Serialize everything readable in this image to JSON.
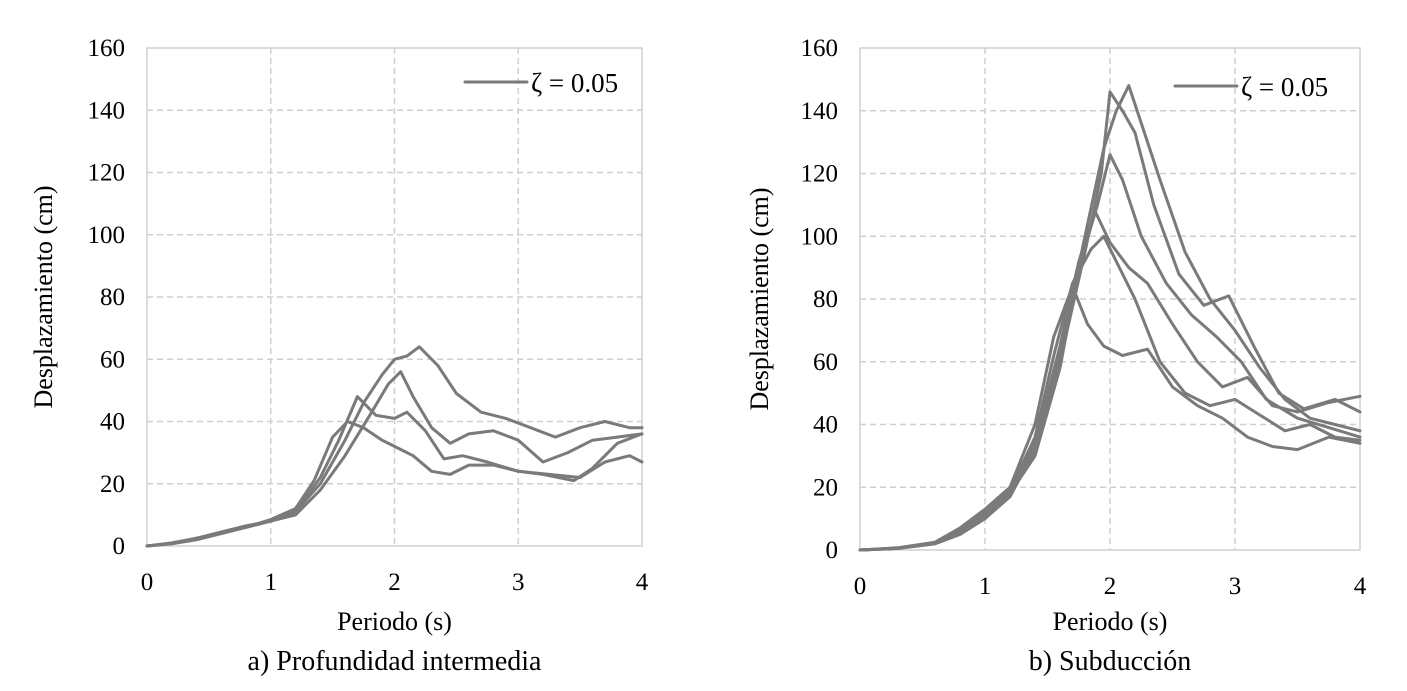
{
  "chart_data": [
    {
      "type": "line",
      "caption": "a) Profundidad intermedia",
      "xlabel": "Periodo (s)",
      "ylabel": "Desplazamiento (cm)",
      "xlim": [
        0,
        4
      ],
      "ylim": [
        0,
        160
      ],
      "x_ticks": [
        "0",
        "1",
        "2",
        "3",
        "4"
      ],
      "y_ticks": [
        "0",
        "20",
        "40",
        "60",
        "80",
        "100",
        "120",
        "140",
        "160"
      ],
      "grid": true,
      "legend": {
        "label": "ζ = 0.05",
        "position": "top-right"
      },
      "color": "#7a7a7a",
      "series": [
        {
          "x": [
            0,
            0.2,
            0.4,
            0.6,
            0.8,
            1.0,
            1.2,
            1.4,
            1.6,
            1.75,
            1.9,
            2.0,
            2.1,
            2.2,
            2.35,
            2.5,
            2.7,
            2.9,
            3.1,
            3.3,
            3.5,
            3.7,
            3.9,
            4.0
          ],
          "y": [
            0,
            0.8,
            2.5,
            4,
            6,
            8,
            11,
            20,
            34,
            46,
            55,
            60,
            61,
            64,
            58,
            49,
            43,
            41,
            38,
            35,
            38,
            40,
            38,
            38
          ]
        },
        {
          "x": [
            0,
            0.2,
            0.4,
            0.6,
            0.8,
            1.0,
            1.2,
            1.4,
            1.6,
            1.8,
            1.95,
            2.05,
            2.15,
            2.3,
            2.45,
            2.6,
            2.8,
            3.0,
            3.2,
            3.4,
            3.6,
            3.8,
            4.0
          ],
          "y": [
            0,
            1,
            2.5,
            4.5,
            6.5,
            8,
            10,
            18,
            29,
            42,
            52,
            56,
            48,
            38,
            33,
            36,
            37,
            34,
            27,
            30,
            34,
            35,
            36
          ]
        },
        {
          "x": [
            0,
            0.2,
            0.4,
            0.6,
            0.8,
            1.0,
            1.2,
            1.4,
            1.55,
            1.7,
            1.85,
            2.0,
            2.1,
            2.25,
            2.4,
            2.55,
            2.75,
            3.0,
            3.25,
            3.5,
            3.7,
            3.9,
            4.0
          ],
          "y": [
            0,
            0.7,
            2,
            4,
            6,
            8,
            11,
            22,
            34,
            48,
            42,
            41,
            43,
            37,
            28,
            29,
            27,
            24,
            23,
            22,
            27,
            29,
            27
          ]
        },
        {
          "x": [
            0,
            0.2,
            0.4,
            0.6,
            0.8,
            1.0,
            1.2,
            1.35,
            1.5,
            1.62,
            1.75,
            1.9,
            2.0,
            2.15,
            2.3,
            2.45,
            2.6,
            2.8,
            3.0,
            3.2,
            3.45,
            3.6,
            3.8,
            4.0
          ],
          "y": [
            0,
            0.9,
            2.4,
            4.2,
            6,
            8.5,
            12,
            21,
            35,
            40,
            38,
            34,
            32,
            29,
            24,
            23,
            26,
            26,
            24,
            23,
            21,
            25,
            33,
            36
          ]
        }
      ]
    },
    {
      "type": "line",
      "caption": "b) Subducción",
      "xlabel": "Periodo (s)",
      "ylabel": "Desplazamiento (cm)",
      "xlim": [
        0,
        4
      ],
      "ylim": [
        0,
        160
      ],
      "x_ticks": [
        "0",
        "1",
        "2",
        "3",
        "4"
      ],
      "y_ticks": [
        "0",
        "20",
        "40",
        "60",
        "80",
        "100",
        "120",
        "140",
        "160"
      ],
      "grid": true,
      "legend": {
        "label": "ζ = 0.05",
        "position": "top-right"
      },
      "color": "#7a7a7a",
      "series": [
        {
          "x": [
            0,
            0.3,
            0.6,
            0.8,
            1.0,
            1.2,
            1.4,
            1.6,
            1.8,
            1.95,
            2.05,
            2.15,
            2.25,
            2.4,
            2.6,
            2.8,
            3.0,
            3.2,
            3.4,
            3.6,
            3.8,
            4.0
          ],
          "y": [
            0,
            0.5,
            2,
            5,
            10,
            18,
            34,
            62,
            100,
            128,
            140,
            148,
            136,
            118,
            95,
            80,
            70,
            58,
            48,
            42,
            40,
            38
          ]
        },
        {
          "x": [
            0,
            0.3,
            0.6,
            0.8,
            1.0,
            1.2,
            1.4,
            1.6,
            1.8,
            1.93,
            2.0,
            2.1,
            2.2,
            2.35,
            2.55,
            2.75,
            2.95,
            3.15,
            3.35,
            3.55,
            3.8,
            4.0
          ],
          "y": [
            0,
            0.5,
            2,
            5,
            10,
            17,
            32,
            60,
            95,
            120,
            146,
            140,
            133,
            110,
            88,
            78,
            81,
            65,
            50,
            45,
            48,
            44
          ]
        },
        {
          "x": [
            0,
            0.3,
            0.6,
            0.8,
            1.0,
            1.2,
            1.4,
            1.6,
            1.75,
            1.9,
            2.0,
            2.1,
            2.25,
            2.45,
            2.65,
            2.85,
            3.05,
            3.25,
            3.5,
            3.75,
            4.0
          ],
          "y": [
            0,
            0.6,
            2.2,
            6,
            11,
            18,
            30,
            58,
            90,
            110,
            126,
            118,
            100,
            85,
            75,
            68,
            60,
            48,
            42,
            39,
            36
          ]
        },
        {
          "x": [
            0,
            0.3,
            0.6,
            0.8,
            1.0,
            1.2,
            1.4,
            1.55,
            1.7,
            1.85,
            1.95,
            2.05,
            2.2,
            2.4,
            2.6,
            2.8,
            3.0,
            3.2,
            3.4,
            3.6,
            3.8,
            4.0
          ],
          "y": [
            0,
            0.7,
            2.5,
            7,
            12,
            19,
            36,
            62,
            85,
            96,
            100,
            92,
            80,
            60,
            50,
            46,
            48,
            43,
            38,
            40,
            36,
            35
          ]
        },
        {
          "x": [
            0,
            0.3,
            0.6,
            0.8,
            1.0,
            1.2,
            1.4,
            1.55,
            1.7,
            1.82,
            1.95,
            2.1,
            2.3,
            2.5,
            2.7,
            2.9,
            3.1,
            3.3,
            3.5,
            3.75,
            4.0
          ],
          "y": [
            0,
            0.6,
            2.3,
            7,
            13,
            20,
            40,
            68,
            84,
            72,
            65,
            62,
            64,
            52,
            46,
            42,
            36,
            33,
            32,
            36,
            34
          ]
        },
        {
          "x": [
            0,
            0.3,
            0.6,
            0.8,
            1.0,
            1.2,
            1.4,
            1.6,
            1.75,
            1.88,
            2.0,
            2.15,
            2.3,
            2.5,
            2.7,
            2.9,
            3.1,
            3.3,
            3.5,
            3.75,
            4.0
          ],
          "y": [
            0,
            0.5,
            2,
            6,
            11,
            18,
            34,
            65,
            92,
            108,
            98,
            90,
            85,
            72,
            60,
            52,
            55,
            46,
            44,
            47,
            49
          ]
        }
      ]
    }
  ]
}
